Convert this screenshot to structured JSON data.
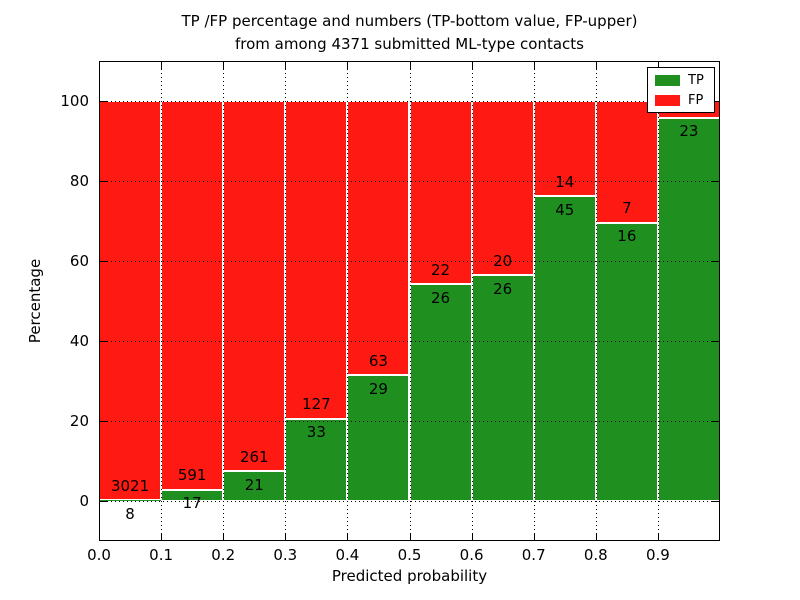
{
  "chart_data": {
    "type": "bar",
    "stacked": true,
    "normalized_to_percent": true,
    "title_line1": "TP /FP percentage and numbers (TP-bottom value, FP-upper)",
    "title_line2": "from among 4371 submitted ML-type contacts",
    "total_contacts": 4371,
    "xlabel": "Predicted probability",
    "ylabel": "Percentage",
    "xlim": [
      0.0,
      1.0
    ],
    "ylim": [
      -10,
      110
    ],
    "x_tick_labels": [
      "0.0",
      "0.1",
      "0.2",
      "0.3",
      "0.4",
      "0.5",
      "0.6",
      "0.7",
      "0.8",
      "0.9"
    ],
    "x_tick_values": [
      0.0,
      0.1,
      0.2,
      0.3,
      0.4,
      0.5,
      0.6,
      0.7,
      0.8,
      0.9
    ],
    "y_tick_labels": [
      "0",
      "20",
      "40",
      "60",
      "80",
      "100"
    ],
    "y_tick_values": [
      0,
      20,
      40,
      60,
      80,
      100
    ],
    "grid": "dotted-both-axes",
    "legend": {
      "position": "upper-right",
      "entries": [
        {
          "label": "TP",
          "color": "#1f8f1f"
        },
        {
          "label": "FP",
          "color": "#fe1a12"
        }
      ]
    },
    "bars": [
      {
        "x_start": 0.0,
        "x_end": 0.1,
        "tp": 8,
        "fp": 3021,
        "fp_label_visible": true
      },
      {
        "x_start": 0.1,
        "x_end": 0.2,
        "tp": 17,
        "fp": 591,
        "fp_label_visible": true
      },
      {
        "x_start": 0.2,
        "x_end": 0.3,
        "tp": 21,
        "fp": 261,
        "fp_label_visible": true
      },
      {
        "x_start": 0.3,
        "x_end": 0.4,
        "tp": 33,
        "fp": 127,
        "fp_label_visible": true
      },
      {
        "x_start": 0.4,
        "x_end": 0.5,
        "tp": 29,
        "fp": 63,
        "fp_label_visible": true
      },
      {
        "x_start": 0.5,
        "x_end": 0.6,
        "tp": 26,
        "fp": 22,
        "fp_label_visible": true
      },
      {
        "x_start": 0.6,
        "x_end": 0.7,
        "tp": 26,
        "fp": 20,
        "fp_label_visible": true
      },
      {
        "x_start": 0.7,
        "x_end": 0.8,
        "tp": 45,
        "fp": 14,
        "fp_label_visible": true
      },
      {
        "x_start": 0.8,
        "x_end": 0.9,
        "tp": 16,
        "fp": 7,
        "fp_label_visible": true
      },
      {
        "x_start": 0.9,
        "x_end": 1.0,
        "tp": 23,
        "fp": 1,
        "fp_label_visible": false
      }
    ],
    "colors": {
      "tp": "#1f8f1f",
      "fp": "#fe1a12",
      "bar_edge": "#ffffff",
      "grid": "#000000",
      "frame": "#000000",
      "background": "#ffffff",
      "text": "#000000"
    }
  }
}
